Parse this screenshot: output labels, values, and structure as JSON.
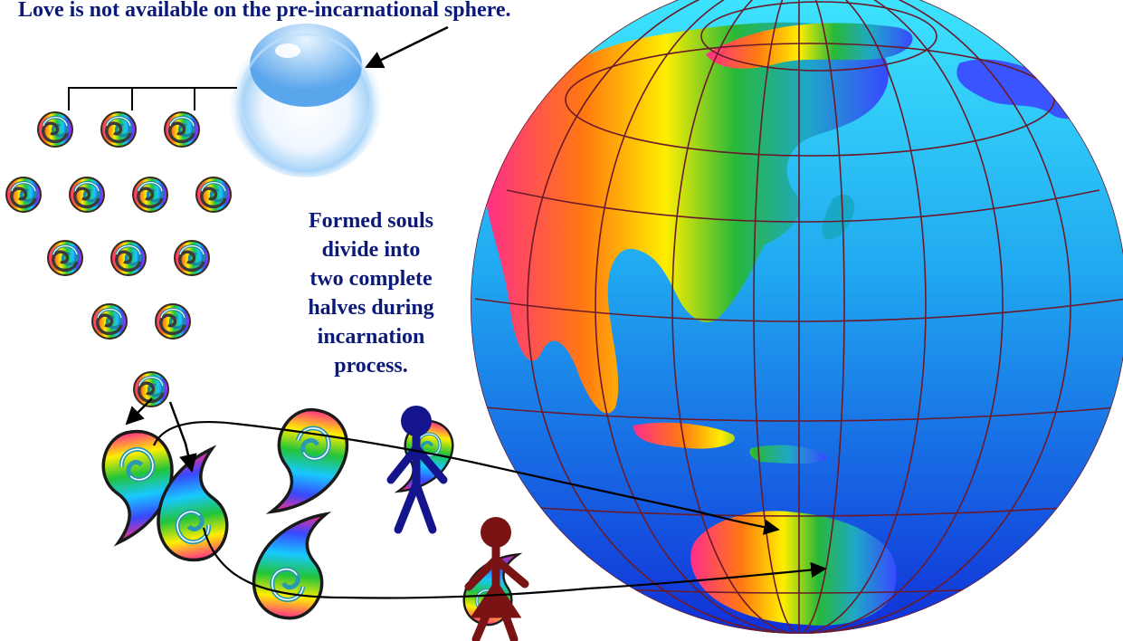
{
  "captions": {
    "top": "Love is not available on the pre-incarnational sphere.",
    "middle_lines": [
      "Formed souls",
      "divide into",
      "two complete",
      "halves during",
      "incarnation",
      "process."
    ]
  },
  "colors": {
    "caption": "#0b1a78",
    "male_figure": "#14148c",
    "female_figure": "#7a1414",
    "grid_lines": "#6b1a2a",
    "ocean_top": "#3fe8ff",
    "ocean_bottom": "#1030d8"
  },
  "icons": {
    "pre_incarnational_sphere": "glass-bubble",
    "soul": "rainbow-spiral-orb",
    "soul_half": "rainbow-spiral-teardrop",
    "globe": "rainbow-earth-globe"
  },
  "soul_grid_rows": [
    3,
    4,
    3,
    2,
    1
  ]
}
